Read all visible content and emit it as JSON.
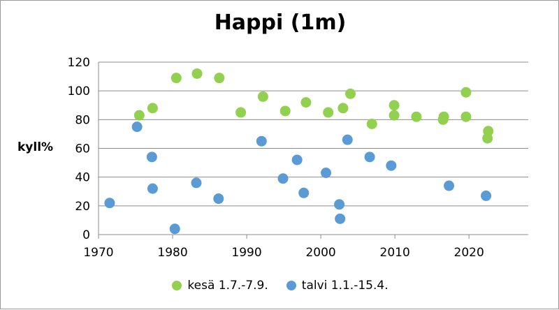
{
  "chart_data": {
    "type": "scatter",
    "title": "Happi (1m)",
    "ylabel": "kyll%",
    "xlabel": "",
    "xlim": [
      1970,
      2028
    ],
    "ylim": [
      0,
      120
    ],
    "xticks": [
      1970,
      1980,
      1990,
      2000,
      2010,
      2020
    ],
    "yticks": [
      0,
      20,
      40,
      60,
      80,
      100,
      120
    ],
    "grid": "horizontal",
    "legend_position": "bottom",
    "series": [
      {
        "name": "kesä 1.7.-7.9.",
        "color": "#92d050",
        "points": [
          {
            "x": 1975.5,
            "y": 83
          },
          {
            "x": 1977.3,
            "y": 88
          },
          {
            "x": 1980.5,
            "y": 109
          },
          {
            "x": 1983.3,
            "y": 112
          },
          {
            "x": 1986.3,
            "y": 109
          },
          {
            "x": 1989.2,
            "y": 85
          },
          {
            "x": 1992.2,
            "y": 96
          },
          {
            "x": 1995.2,
            "y": 86
          },
          {
            "x": 1998.0,
            "y": 92
          },
          {
            "x": 2001.0,
            "y": 85
          },
          {
            "x": 2003.0,
            "y": 88
          },
          {
            "x": 2004.0,
            "y": 98
          },
          {
            "x": 2006.9,
            "y": 77
          },
          {
            "x": 2009.9,
            "y": 90
          },
          {
            "x": 2009.9,
            "y": 83
          },
          {
            "x": 2012.9,
            "y": 82
          },
          {
            "x": 2016.6,
            "y": 82
          },
          {
            "x": 2016.5,
            "y": 80
          },
          {
            "x": 2019.6,
            "y": 99
          },
          {
            "x": 2019.6,
            "y": 82
          },
          {
            "x": 2022.6,
            "y": 72
          },
          {
            "x": 2022.5,
            "y": 67
          }
        ]
      },
      {
        "name": "talvi 1.1.-15.4.",
        "color": "#5b9bd5",
        "points": [
          {
            "x": 1971.5,
            "y": 22
          },
          {
            "x": 1975.2,
            "y": 75
          },
          {
            "x": 1977.2,
            "y": 54
          },
          {
            "x": 1977.3,
            "y": 32
          },
          {
            "x": 1980.3,
            "y": 4
          },
          {
            "x": 1983.2,
            "y": 36
          },
          {
            "x": 1986.2,
            "y": 25
          },
          {
            "x": 1992.0,
            "y": 65
          },
          {
            "x": 1994.9,
            "y": 39
          },
          {
            "x": 1996.8,
            "y": 52
          },
          {
            "x": 1997.7,
            "y": 29
          },
          {
            "x": 2000.7,
            "y": 43
          },
          {
            "x": 2002.5,
            "y": 21
          },
          {
            "x": 2002.6,
            "y": 11
          },
          {
            "x": 2003.6,
            "y": 66
          },
          {
            "x": 2006.6,
            "y": 54
          },
          {
            "x": 2009.5,
            "y": 48
          },
          {
            "x": 2017.3,
            "y": 34
          },
          {
            "x": 2022.3,
            "y": 27
          }
        ]
      }
    ]
  }
}
